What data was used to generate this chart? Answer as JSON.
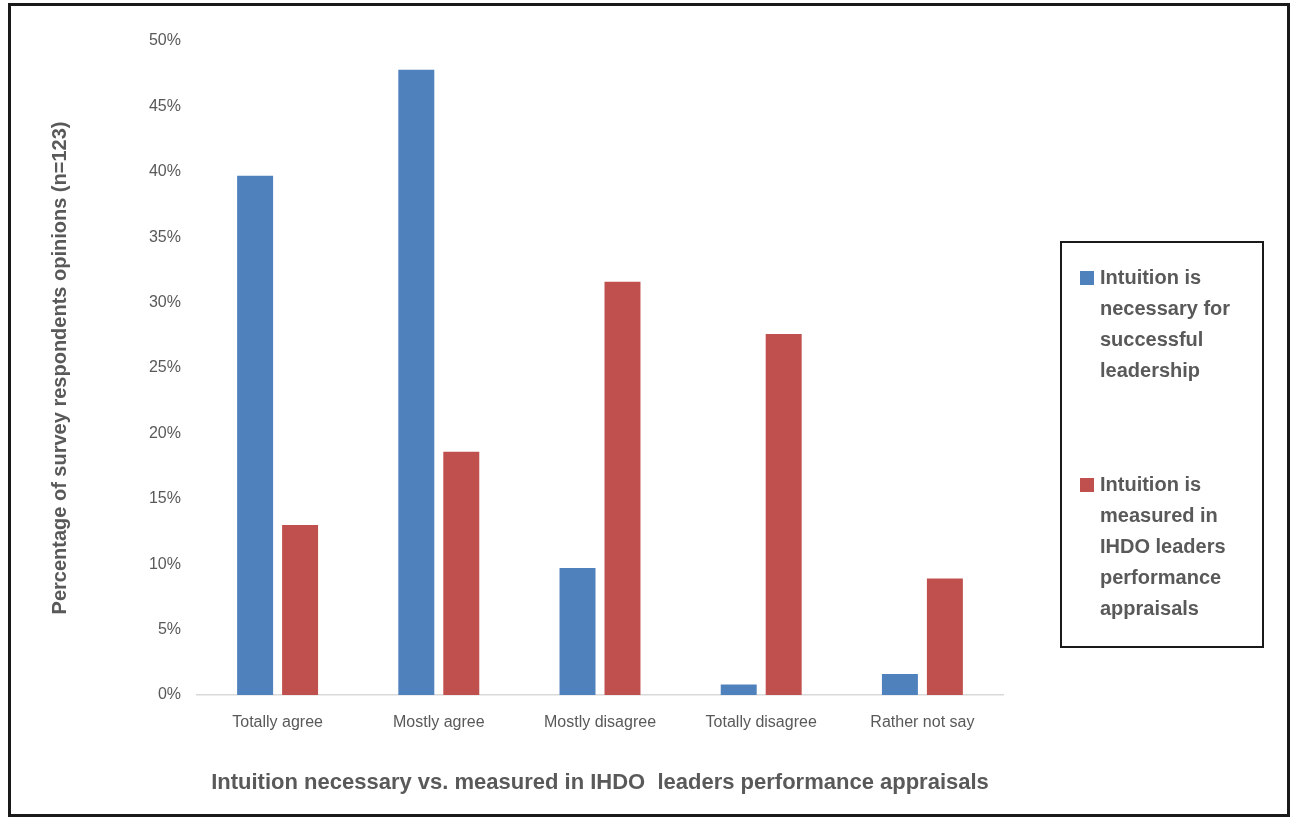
{
  "chart_data": {
    "type": "bar",
    "xlabel": "Intuition necessary vs. measured in IHDO  leaders performance appraisals",
    "ylabel": "Percentage of survey respondents opinions (n=123)",
    "categories": [
      "Totally agree",
      "Mostly agree",
      "Mostly disagree",
      "Totally disagree",
      "Rather not say"
    ],
    "series": [
      {
        "name": "Intuition is necessary for successful leadership",
        "color": "#4f81bd",
        "values": [
          39.7,
          47.8,
          9.7,
          0.8,
          1.6
        ]
      },
      {
        "name": "Intuition is measured in IHDO leaders performance appraisals",
        "color": "#c0504d",
        "values": [
          13.0,
          18.6,
          31.6,
          27.6,
          8.9
        ]
      }
    ],
    "ylim": [
      0,
      50
    ],
    "yticks": [
      {
        "value": 0,
        "label": "0%"
      },
      {
        "value": 5,
        "label": "5%"
      },
      {
        "value": 10,
        "label": "10%"
      },
      {
        "value": 15,
        "label": "15%"
      },
      {
        "value": 20,
        "label": "20%"
      },
      {
        "value": 25,
        "label": "25%"
      },
      {
        "value": 30,
        "label": "30%"
      },
      {
        "value": 35,
        "label": "35%"
      },
      {
        "value": 40,
        "label": "40%"
      },
      {
        "value": 45,
        "label": "45%"
      },
      {
        "value": 50,
        "label": "50%"
      }
    ],
    "grid": false,
    "legend": "right"
  }
}
